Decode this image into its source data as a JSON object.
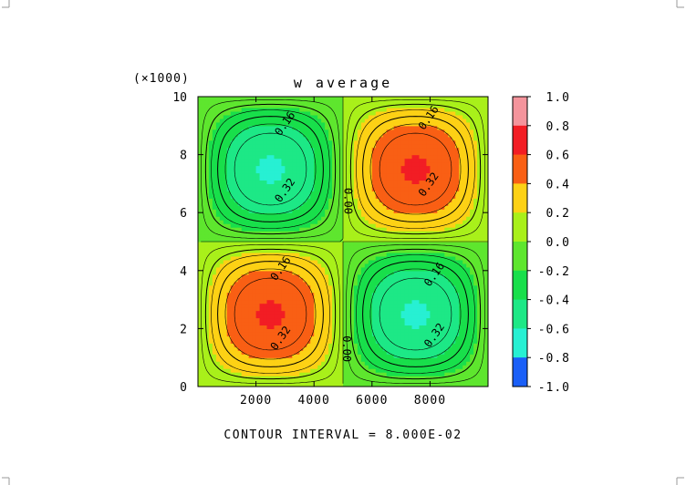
{
  "chart_data": {
    "type": "heatmap",
    "title": "w average",
    "y_multiplier_label": "(×1000)",
    "footer": "CONTOUR INTERVAL = 8.000E-02",
    "x_ticks": [
      "2000",
      "4000",
      "6000",
      "8000"
    ],
    "x_tick_values": [
      2000,
      4000,
      6000,
      8000
    ],
    "y_ticks": [
      "0",
      "2",
      "4",
      "6",
      "8",
      "10"
    ],
    "y_tick_values": [
      0,
      2,
      4,
      6,
      8,
      10
    ],
    "xlim": [
      0,
      10000
    ],
    "ylim": [
      0,
      10
    ],
    "field": {
      "description_of_cells": [
        {
          "center": [
            2500,
            7.5
          ],
          "sign": "negative",
          "peak": -0.6
        },
        {
          "center": [
            7500,
            7.5
          ],
          "sign": "positive",
          "peak": 0.6
        },
        {
          "center": [
            2500,
            2.5
          ],
          "sign": "positive",
          "peak": 0.6
        },
        {
          "center": [
            7500,
            2.5
          ],
          "sign": "negative",
          "peak": -0.6
        }
      ]
    },
    "contour_labels": [
      {
        "text": "0.16",
        "x": 3100,
        "y": 9.0
      },
      {
        "text": "0.16",
        "x": 8050,
        "y": 9.2
      },
      {
        "text": "0.32",
        "x": 3100,
        "y": 6.7
      },
      {
        "text": "0.32",
        "x": 8050,
        "y": 6.9
      },
      {
        "text": "0.00",
        "x": 5050,
        "y": 6.4
      },
      {
        "text": "0.16",
        "x": 2950,
        "y": 4.0
      },
      {
        "text": "0.16",
        "x": 8250,
        "y": 3.8
      },
      {
        "text": "0.32",
        "x": 2950,
        "y": 1.6
      },
      {
        "text": "0.32",
        "x": 8250,
        "y": 1.7
      },
      {
        "text": "0.00",
        "x": 5000,
        "y": 1.3
      }
    ],
    "colorbar": {
      "labels": [
        "1.0",
        "0.8",
        "0.6",
        "0.4",
        "0.2",
        "0.0",
        "-0.2",
        "-0.4",
        "-0.6",
        "-0.8",
        "-1.0"
      ],
      "levels": [
        1.0,
        0.8,
        0.6,
        0.4,
        0.2,
        0.0,
        -0.2,
        -0.4,
        -0.6,
        -0.8,
        -1.0
      ],
      "colors": [
        "#f4949c",
        "#f21d24",
        "#f95f14",
        "#fdd115",
        "#a9f01a",
        "#5ee62e",
        "#18df4b",
        "#1de886",
        "#27f0d3",
        "#21c1f5",
        "#1a5ff7"
      ]
    }
  }
}
